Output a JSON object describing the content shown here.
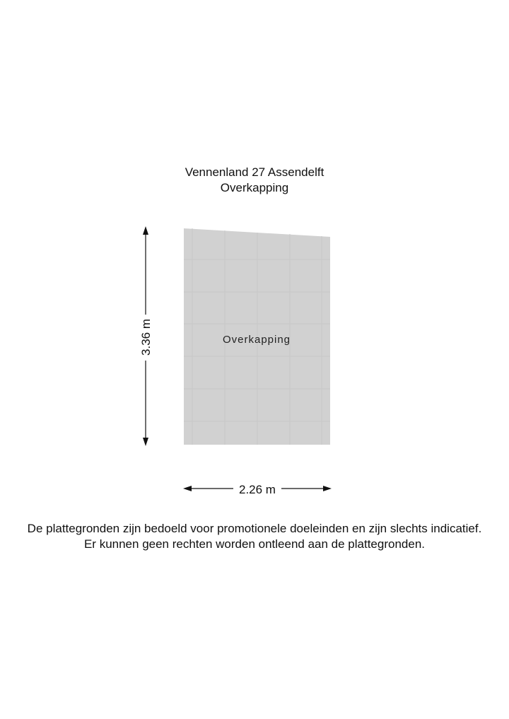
{
  "header": {
    "address": "Vennenland 27 Assendelft",
    "floor": "Overkapping"
  },
  "plan": {
    "room_label": "Overkapping",
    "height_dimension": "3.36 m",
    "width_dimension": "2.26 m",
    "fill_color": "#d1d1d1"
  },
  "disclaimer": {
    "line1": "De plattegronden zijn bedoeld voor promotionele doeleinden en zijn slechts indicatief.",
    "line2": "Er kunnen geen rechten worden ontleend aan de plattegronden."
  }
}
